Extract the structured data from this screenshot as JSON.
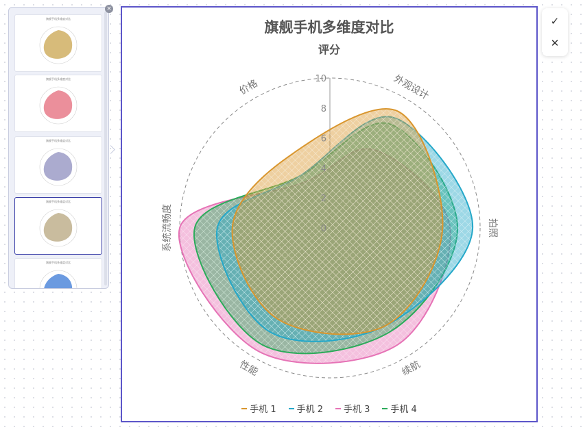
{
  "thumbnails": [
    {
      "label": "旗舰手机多维度对比",
      "fill": "#c9a44e"
    },
    {
      "label": "旗舰手机多维度对比",
      "fill": "#e46a7a"
    },
    {
      "label": "旗舰手机多维度对比",
      "fill": "#8f8fbf"
    },
    {
      "label": "旗舰手机多维度对比",
      "fill": "#b7a67e"
    },
    {
      "label": "旗舰手机多维度对比",
      "fill": "#3a78d6"
    }
  ],
  "toolbar": {
    "confirm_icon": "✓",
    "close_icon": "✕",
    "panel_close_icon": "×"
  },
  "chart_data": {
    "type": "radar",
    "title": "旗舰手机多维度对比",
    "subtitle": "评分",
    "indicators": [
      "外观设计",
      "拍照",
      "续航",
      "性能",
      "系统流畅度",
      "价格"
    ],
    "radial_ticks": [
      "0",
      "2",
      "4",
      "6",
      "8",
      "10"
    ],
    "rlim": [
      0,
      10
    ],
    "series": [
      {
        "name": "手机 1",
        "color": "#d9962e",
        "values": [
          9,
          7.5,
          7.5,
          7,
          6.5,
          5.5
        ]
      },
      {
        "name": "手机 2",
        "color": "#25a8c9",
        "values": [
          8.5,
          9.5,
          7.5,
          8,
          7.5,
          4
        ]
      },
      {
        "name": "手机 3",
        "color": "#e673b6",
        "values": [
          6,
          8,
          9,
          9.5,
          10,
          3.5
        ]
      },
      {
        "name": "手机 4",
        "color": "#2cab5a",
        "values": [
          8,
          8.5,
          8,
          9,
          9,
          4
        ]
      }
    ],
    "legend_position": "bottom"
  }
}
